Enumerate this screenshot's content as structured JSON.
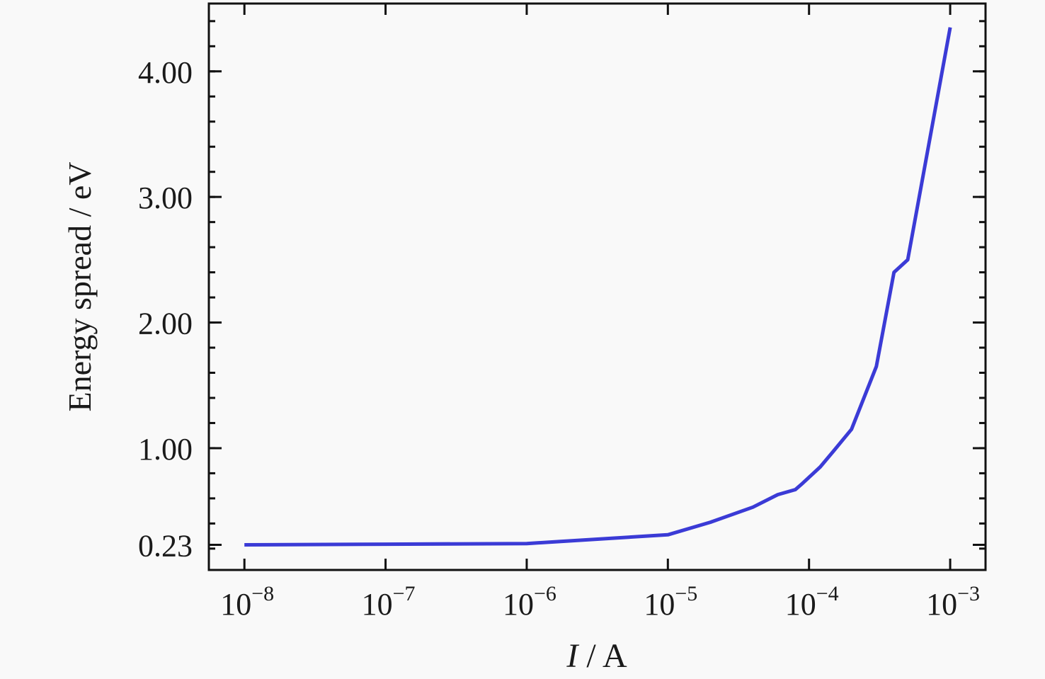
{
  "chart_data": {
    "type": "line",
    "xlabel_italic": "I",
    "xlabel_rest": " / A",
    "ylabel": "Energy spread / eV",
    "x_scale": "log",
    "xlim": [
      5.6e-09,
      0.00178
    ],
    "ylim": [
      0.03,
      4.54
    ],
    "x_ticks": [
      {
        "value": 1e-08,
        "base": "10",
        "exp": "−8"
      },
      {
        "value": 1e-07,
        "base": "10",
        "exp": "−7"
      },
      {
        "value": 1e-06,
        "base": "10",
        "exp": "−6"
      },
      {
        "value": 1e-05,
        "base": "10",
        "exp": "−5"
      },
      {
        "value": 0.0001,
        "base": "10",
        "exp": "−4"
      },
      {
        "value": 0.001,
        "base": "10",
        "exp": "−3"
      }
    ],
    "y_ticks": [
      {
        "value": 0.23,
        "label": "0.23"
      },
      {
        "value": 1.0,
        "label": "1.00"
      },
      {
        "value": 2.0,
        "label": "2.00"
      },
      {
        "value": 3.0,
        "label": "3.00"
      },
      {
        "value": 4.0,
        "label": "4.00"
      }
    ],
    "y_minor_step": 0.2,
    "grid": false,
    "line_color": "#3b3bd6",
    "series": [
      {
        "x": [
          1e-08,
          1e-07,
          1e-06,
          1e-05,
          2e-05,
          4e-05,
          6e-05,
          8e-05,
          9e-05,
          0.00012,
          0.00015,
          0.0002,
          0.0003,
          0.0004,
          0.0005,
          0.001
        ],
        "y": [
          0.23,
          0.235,
          0.24,
          0.31,
          0.41,
          0.53,
          0.63,
          0.67,
          0.72,
          0.85,
          0.98,
          1.15,
          1.65,
          2.4,
          2.5,
          4.35
        ]
      }
    ]
  }
}
